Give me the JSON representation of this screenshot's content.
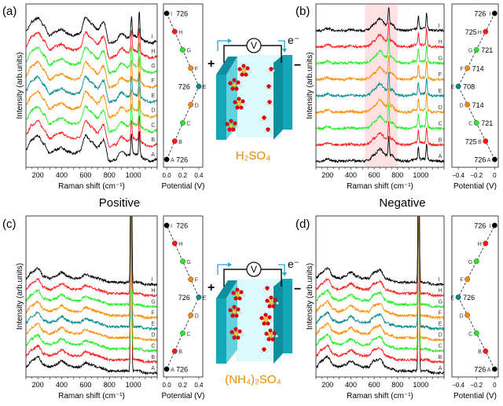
{
  "headings": {
    "positive": "Positive",
    "negative": "Negative"
  },
  "cells": [
    {
      "electrolyte": "H₂SO₄",
      "voltmeter": "V",
      "electron": "e⁻",
      "plus": "+",
      "minus": "−"
    },
    {
      "electrolyte": "(NH₄)₂SO₄",
      "voltmeter": "V",
      "electron": "e⁻",
      "plus": "+",
      "minus": "−"
    }
  ],
  "colors": {
    "A": "#000000",
    "B": "#ff1a1a",
    "C": "#22ee22",
    "D": "#ff8c00",
    "E": "#008b8b",
    "F": "#ff8c00",
    "G": "#22ee22",
    "H": "#ff1a1a",
    "I": "#000000",
    "electrolyte_text": "#e88a00",
    "electrode": "#14a7b8",
    "liquid": "#d8f8fc",
    "highlight": "#ffd9dc"
  },
  "chart_data": [
    {
      "panel": "(a)",
      "type": "line",
      "xlabel": "Raman shift (cm⁻¹)",
      "ylabel": "Intensity (arb.units)",
      "xlim": [
        100,
        1200
      ],
      "ylim": [
        0,
        8.3
      ],
      "xticks": [
        200,
        400,
        600,
        800,
        1000
      ],
      "xtick_labels": [
        "200",
        "400",
        "600",
        "800",
        "1000"
      ],
      "x": [
        100,
        150,
        200,
        250,
        300,
        350,
        400,
        450,
        500,
        550,
        600,
        650,
        700,
        750,
        800,
        850,
        900,
        950,
        1000,
        1050,
        1100,
        1150,
        1200
      ],
      "profile": [
        0.9,
        1.4,
        1.6,
        1.2,
        0.7,
        0.9,
        1.0,
        0.8,
        0.7,
        0.8,
        1.6,
        1.3,
        1.0,
        1.4,
        0.3,
        0.4,
        0.8,
        0.6,
        0.7,
        0.6,
        0.4,
        0.3,
        0.4
      ],
      "sharp_peaks": [
        {
          "x": 985,
          "height": 1.0
        },
        {
          "x": 1050,
          "height": 1.3
        }
      ],
      "series": [
        {
          "name": "A",
          "offset": 0
        },
        {
          "name": "B",
          "offset": 0.75
        },
        {
          "name": "C",
          "offset": 1.5
        },
        {
          "name": "D",
          "offset": 2.25
        },
        {
          "name": "E",
          "offset": 3.0
        },
        {
          "name": "F",
          "offset": 3.75
        },
        {
          "name": "G",
          "offset": 4.5
        },
        {
          "name": "H",
          "offset": 5.25
        },
        {
          "name": "I",
          "offset": 6.0
        }
      ],
      "potential": {
        "xlabel": "Potential (V)",
        "xlim": [
          -0.04,
          0.45
        ],
        "xticks": [
          0.0,
          0.2,
          0.4
        ],
        "xtick_labels": [
          "0.0",
          "0.2",
          "0.4"
        ],
        "values": [
          0.0,
          0.1,
          0.2,
          0.3,
          0.4,
          0.3,
          0.2,
          0.1,
          0.0
        ],
        "annotations": {
          "A": "726",
          "E": "726",
          "I": "726"
        }
      }
    },
    {
      "panel": "(b)",
      "type": "line",
      "xlabel": "Raman shift (cm⁻¹)",
      "ylabel": "Intensity (arb.units)",
      "xlim": [
        100,
        1200
      ],
      "ylim": [
        0,
        8.0
      ],
      "xticks": [
        200,
        400,
        600,
        800,
        1000
      ],
      "xtick_labels": [
        "200",
        "400",
        "600",
        "800",
        "1000"
      ],
      "x": [
        100,
        150,
        200,
        250,
        300,
        350,
        400,
        450,
        500,
        550,
        600,
        650,
        700,
        750,
        800,
        850,
        900,
        950,
        1000,
        1050,
        1100,
        1150,
        1200
      ],
      "profile": [
        0.3,
        0.3,
        0.4,
        0.3,
        0.3,
        0.3,
        0.35,
        0.3,
        0.3,
        0.35,
        0.6,
        0.9,
        0.6,
        0.6,
        0.35,
        0.3,
        0.3,
        0.4,
        0.4,
        0.4,
        0.3,
        0.3,
        0.3
      ],
      "sharp_peaks": [
        {
          "x": 725,
          "height": 0.9
        },
        {
          "x": 980,
          "height": 0.6
        },
        {
          "x": 1050,
          "height": 0.8
        }
      ],
      "highlight_range": [
        520,
        800
      ],
      "series": [
        {
          "name": "A",
          "offset": 0
        },
        {
          "name": "B",
          "offset": 0.8
        },
        {
          "name": "C",
          "offset": 1.6
        },
        {
          "name": "D",
          "offset": 2.4
        },
        {
          "name": "E",
          "offset": 3.2
        },
        {
          "name": "F",
          "offset": 4.0
        },
        {
          "name": "G",
          "offset": 4.8
        },
        {
          "name": "H",
          "offset": 5.6
        },
        {
          "name": "I",
          "offset": 6.4
        }
      ],
      "potential": {
        "xlabel": "Potential (V)",
        "xlim": [
          -0.47,
          0.04
        ],
        "xticks": [
          -0.4,
          -0.2,
          0.0
        ],
        "xtick_labels": [
          "−0.4",
          "−0.2",
          "0"
        ],
        "values": [
          0.0,
          -0.1,
          -0.2,
          -0.3,
          -0.4,
          -0.3,
          -0.2,
          -0.1,
          0.0
        ],
        "annotations": {
          "A": "726",
          "B": "725",
          "C": "721",
          "D": "714",
          "E": "708",
          "F": "714",
          "G": "721",
          "H": "725",
          "I": "726"
        }
      }
    },
    {
      "panel": "(c)",
      "type": "line",
      "xlabel": "Raman shift (cm⁻¹)",
      "ylabel": "Intensity (arb.units)",
      "xlim": [
        100,
        1200
      ],
      "ylim": [
        0,
        8.0
      ],
      "xticks": [
        200,
        400,
        600,
        800,
        1000
      ],
      "xtick_labels": [
        "200",
        "400",
        "600",
        "800",
        "1000"
      ],
      "x": [
        100,
        150,
        200,
        250,
        300,
        350,
        400,
        450,
        500,
        550,
        600,
        650,
        700,
        750,
        800,
        850,
        900,
        950,
        1000,
        1050,
        1100,
        1150,
        1200
      ],
      "profile": [
        0.5,
        0.8,
        1.0,
        0.6,
        0.5,
        0.6,
        0.8,
        0.6,
        0.5,
        0.5,
        0.7,
        0.6,
        0.5,
        0.4,
        0.3,
        0.3,
        0.3,
        0.3,
        0.3,
        0.3,
        0.2,
        0.2,
        0.2
      ],
      "sharp_peaks": [
        {
          "x": 982,
          "height": 9.0
        }
      ],
      "series": [
        {
          "name": "A",
          "offset": 0
        },
        {
          "name": "B",
          "offset": 0.55
        },
        {
          "name": "C",
          "offset": 1.1
        },
        {
          "name": "D",
          "offset": 1.65
        },
        {
          "name": "E",
          "offset": 2.2
        },
        {
          "name": "F",
          "offset": 2.75
        },
        {
          "name": "G",
          "offset": 3.3
        },
        {
          "name": "H",
          "offset": 3.85
        },
        {
          "name": "I",
          "offset": 4.4
        }
      ],
      "potential": {
        "xlabel": "Potential (V)",
        "xlim": [
          -0.04,
          0.45
        ],
        "xticks": [
          0.0,
          0.2,
          0.4
        ],
        "xtick_labels": [
          "0.0",
          "0.2",
          "0.4"
        ],
        "values": [
          0.0,
          0.1,
          0.2,
          0.3,
          0.4,
          0.3,
          0.2,
          0.1,
          0.0
        ],
        "annotations": {
          "A": "726",
          "E": "726",
          "I": "726"
        }
      }
    },
    {
      "panel": "(d)",
      "type": "line",
      "xlabel": "Raman shift (cm⁻¹)",
      "ylabel": "Intensity (arb.units)",
      "xlim": [
        100,
        1200
      ],
      "ylim": [
        0,
        8.0
      ],
      "xticks": [
        200,
        400,
        600,
        800,
        1000
      ],
      "xtick_labels": [
        "200",
        "400",
        "600",
        "800",
        "1000"
      ],
      "x": [
        100,
        150,
        200,
        250,
        300,
        350,
        400,
        450,
        500,
        550,
        600,
        650,
        700,
        750,
        800,
        850,
        900,
        950,
        1000,
        1050,
        1100,
        1150,
        1200
      ],
      "profile": [
        0.5,
        0.8,
        1.0,
        0.6,
        0.5,
        0.6,
        0.8,
        0.6,
        0.5,
        0.5,
        0.8,
        0.9,
        0.5,
        0.4,
        0.3,
        0.3,
        0.3,
        0.3,
        0.3,
        0.3,
        0.2,
        0.2,
        0.2
      ],
      "sharp_peaks": [
        {
          "x": 982,
          "height": 9.0
        }
      ],
      "series": [
        {
          "name": "A",
          "offset": 0
        },
        {
          "name": "B",
          "offset": 0.55
        },
        {
          "name": "C",
          "offset": 1.1
        },
        {
          "name": "D",
          "offset": 1.65
        },
        {
          "name": "E",
          "offset": 2.2
        },
        {
          "name": "F",
          "offset": 2.75
        },
        {
          "name": "G",
          "offset": 3.3
        },
        {
          "name": "H",
          "offset": 3.85
        },
        {
          "name": "I",
          "offset": 4.4
        }
      ],
      "potential": {
        "xlabel": "Potential (V)",
        "xlim": [
          -0.47,
          0.04
        ],
        "xticks": [
          -0.4,
          -0.2,
          0.0
        ],
        "xtick_labels": [
          "−0.4",
          "−0.2",
          "0"
        ],
        "values": [
          0.0,
          -0.1,
          -0.2,
          -0.3,
          -0.4,
          -0.3,
          -0.2,
          -0.1,
          0.0
        ],
        "annotations": {
          "A": "726",
          "E": "726",
          "I": "726"
        }
      }
    }
  ]
}
